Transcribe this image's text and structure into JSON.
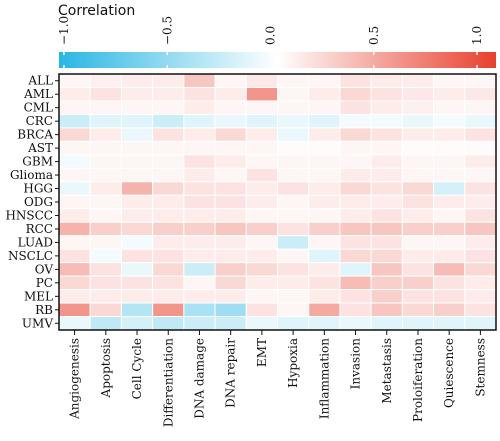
{
  "chart_data": {
    "type": "heatmap",
    "colorbar": {
      "title": "Correlation",
      "range": [
        -1.0,
        1.0
      ],
      "ticks": [
        -1.0,
        -0.5,
        0.0,
        0.5,
        1.0
      ],
      "tick_labels": [
        "−1.0",
        "−0.5",
        "0.0",
        "0.5",
        "1.0"
      ],
      "low_color": "#29b6e3",
      "mid_color": "#ffffff",
      "high_color": "#e8402d"
    },
    "columns": [
      "Angiogenesis",
      "Apoptosis",
      "Cell Cycle",
      "Differentiation",
      "DNA damage",
      "DNA repair",
      "EMT",
      "Hypoxia",
      "Inflammation",
      "Invasion",
      "Metastasis",
      "Proloiferation",
      "Quiescence",
      "Stemness"
    ],
    "rows": [
      "ALL",
      "AML",
      "CML",
      "CRC",
      "BRCA",
      "AST",
      "GBM",
      "Glioma",
      "HGG",
      "ODG",
      "HNSCC",
      "RCC",
      "LUAD",
      "NSCLC",
      "OV",
      "PC",
      "MEL",
      "RB",
      "UMV"
    ],
    "values": [
      [
        0.05,
        0.08,
        0.1,
        0.1,
        0.3,
        0.05,
        0.12,
        0.05,
        0.05,
        0.15,
        0.1,
        0.1,
        0.05,
        0.05
      ],
      [
        0.1,
        0.15,
        0.1,
        0.1,
        0.15,
        0.1,
        0.55,
        0.05,
        0.1,
        0.2,
        0.15,
        0.12,
        0.1,
        0.12
      ],
      [
        0.05,
        0.05,
        0.05,
        0.05,
        0.1,
        0.05,
        0.05,
        0.05,
        0.05,
        0.15,
        0.1,
        0.08,
        0.05,
        0.05
      ],
      [
        -0.25,
        -0.15,
        -0.15,
        -0.25,
        -0.15,
        -0.1,
        -0.15,
        -0.1,
        -0.15,
        -0.05,
        -0.05,
        -0.1,
        -0.05,
        -0.1
      ],
      [
        0.2,
        0.1,
        -0.1,
        0.15,
        0.1,
        0.2,
        0.1,
        -0.1,
        0.1,
        0.2,
        0.15,
        0.1,
        0.1,
        0.15
      ],
      [
        0.05,
        0.05,
        0.05,
        0.05,
        0.05,
        0.05,
        0.05,
        0.02,
        0.02,
        0.05,
        0.05,
        0.02,
        0.02,
        0.02
      ],
      [
        -0.05,
        0.05,
        0.05,
        0.05,
        0.15,
        0.1,
        0.05,
        0.05,
        0.05,
        0.05,
        0.1,
        0.05,
        0.05,
        0.1
      ],
      [
        0.05,
        0.05,
        0.05,
        0.05,
        0.1,
        0.05,
        0.15,
        0.05,
        0.05,
        0.1,
        0.1,
        0.05,
        0.05,
        0.05
      ],
      [
        -0.1,
        0.1,
        0.4,
        0.2,
        0.15,
        0.15,
        0.1,
        0.15,
        0.1,
        0.2,
        0.15,
        0.2,
        -0.2,
        0.15
      ],
      [
        0.05,
        0.05,
        0.1,
        0.1,
        0.15,
        0.15,
        0.1,
        0.05,
        0.1,
        0.1,
        0.1,
        0.15,
        0.1,
        0.1
      ],
      [
        0.1,
        0.05,
        0.1,
        0.1,
        0.1,
        0.1,
        0.05,
        0.05,
        0.05,
        0.1,
        0.15,
        0.1,
        0.05,
        0.15
      ],
      [
        0.4,
        0.25,
        0.2,
        0.25,
        0.25,
        0.3,
        0.25,
        0.15,
        0.25,
        0.3,
        0.3,
        0.25,
        0.25,
        0.3
      ],
      [
        0.05,
        0.05,
        -0.05,
        0.1,
        0.1,
        0.1,
        0.05,
        -0.25,
        0.05,
        0.15,
        0.15,
        0.05,
        0.05,
        0.1
      ],
      [
        0.15,
        -0.05,
        0.15,
        0.15,
        0.1,
        0.1,
        0.1,
        0.05,
        -0.15,
        0.2,
        0.2,
        0.1,
        0.1,
        0.15
      ],
      [
        0.35,
        0.15,
        -0.1,
        0.2,
        -0.25,
        0.25,
        0.2,
        0.15,
        0.1,
        -0.15,
        0.3,
        0.15,
        0.35,
        0.2
      ],
      [
        0.2,
        0.15,
        0.15,
        0.15,
        0.05,
        0.2,
        0.1,
        0.1,
        0.15,
        0.35,
        0.25,
        0.25,
        0.15,
        0.1
      ],
      [
        0.1,
        0.1,
        0.1,
        0.1,
        0.1,
        0.1,
        0.05,
        0.05,
        0.1,
        0.15,
        0.25,
        0.15,
        0.15,
        0.1
      ],
      [
        0.55,
        0.2,
        -0.35,
        0.55,
        -0.4,
        -0.45,
        0.15,
        0.05,
        0.45,
        0.15,
        0.3,
        0.2,
        0.25,
        0.15
      ],
      [
        -0.1,
        -0.3,
        -0.2,
        -0.3,
        -0.25,
        -0.25,
        -0.1,
        -0.15,
        -0.15,
        -0.1,
        -0.15,
        -0.15,
        -0.15,
        -0.15
      ]
    ]
  }
}
